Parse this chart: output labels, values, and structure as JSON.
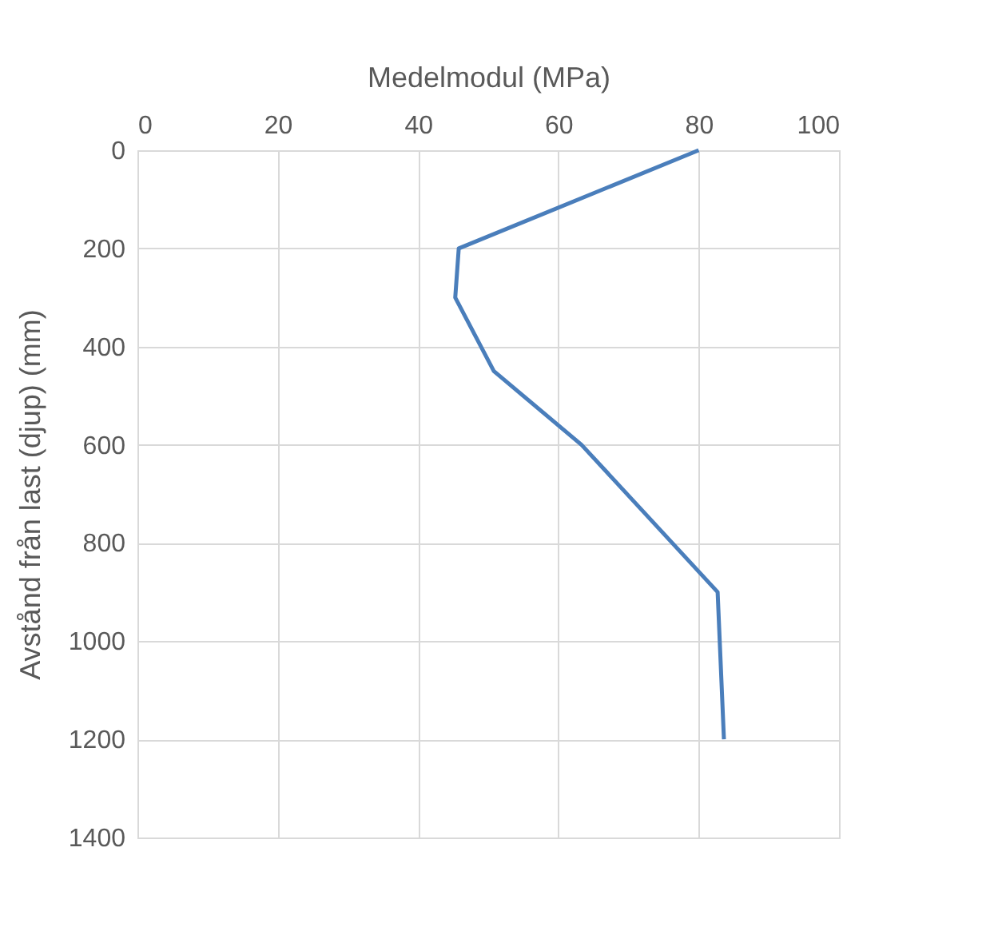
{
  "chart_data": {
    "type": "line",
    "xlabel": "Medelmodul (MPa)",
    "ylabel": "Avstånd från last (djup) (mm)",
    "x": [
      80,
      45.8,
      45.3,
      50.8,
      63.3,
      82.7,
      83.6
    ],
    "series": [
      {
        "color": "#4a7ebb",
        "values": [
          0,
          200,
          300,
          450,
          600,
          900,
          1200
        ]
      }
    ],
    "xlim": [
      0,
      100
    ],
    "xticks": [
      0,
      20,
      40,
      60,
      80,
      100
    ],
    "ylim": [
      1400,
      0
    ],
    "yticks": [
      0,
      200,
      400,
      600,
      800,
      1000,
      1200,
      1400
    ],
    "grid": true,
    "legend": false,
    "marker": "none",
    "line_style": "solid"
  }
}
